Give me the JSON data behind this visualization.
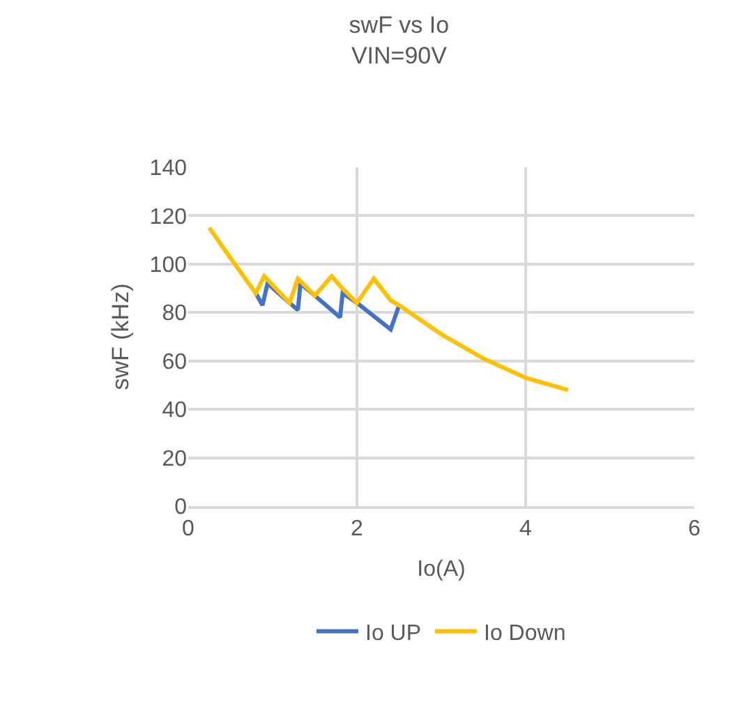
{
  "chart_data": {
    "type": "line",
    "title": "swF vs Io\nVIN=90V",
    "xlabel": "Io(A)",
    "ylabel": "swF (kHz)",
    "xlim": [
      0,
      6
    ],
    "xticks": [
      0,
      2,
      4,
      6
    ],
    "ylim": [
      0,
      140
    ],
    "yticks": [
      0,
      20,
      40,
      60,
      80,
      100,
      120,
      140
    ],
    "grid": true,
    "legend": "bottom",
    "marker": "none",
    "line_style": "solid",
    "series": [
      {
        "name": "Io UP",
        "color": "#4472c4",
        "x": [
          0.8,
          0.88,
          0.94,
          1.2,
          1.3,
          1.33,
          1.5,
          1.8,
          1.83,
          2.0,
          2.4,
          2.5
        ],
        "values": [
          88,
          83,
          92,
          84,
          81,
          92,
          87,
          78,
          88,
          84,
          73,
          83
        ]
      },
      {
        "name": "Io Down",
        "color": "#ffc000",
        "x": [
          0.25,
          0.47,
          0.8,
          0.9,
          1.2,
          1.3,
          1.5,
          1.7,
          1.8,
          2.0,
          2.2,
          2.4,
          2.5,
          3.0,
          3.5,
          4.0,
          4.5
        ],
        "values": [
          115,
          104,
          88,
          95,
          84,
          94,
          87,
          95,
          91,
          84,
          94,
          85,
          83,
          71,
          61,
          53,
          48
        ]
      }
    ]
  }
}
